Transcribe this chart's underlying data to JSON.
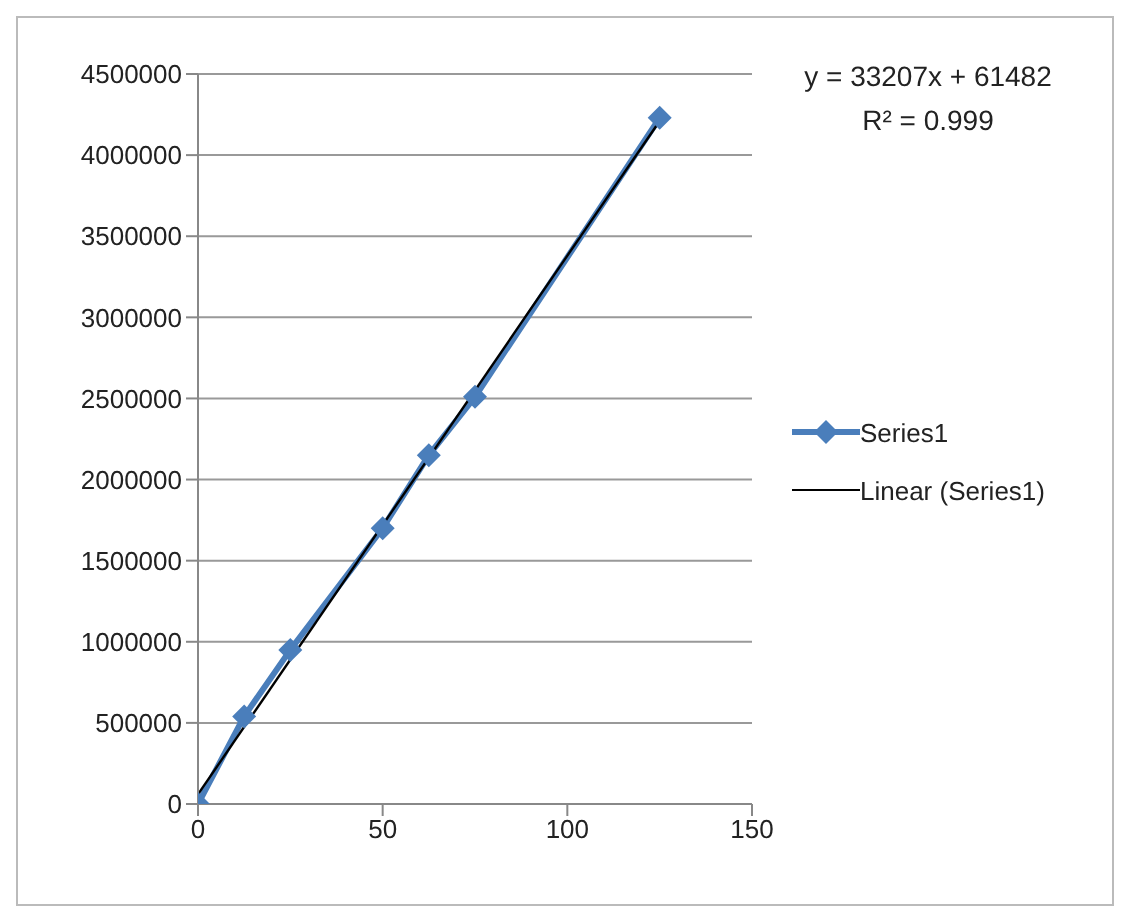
{
  "chart_data": {
    "type": "line",
    "annotations": [
      "y = 33207x + 61482",
      "R² = 0.999"
    ],
    "series": [
      {
        "name": "Series1",
        "color": "#4a7ebb",
        "x": [
          0,
          12.5,
          25,
          50,
          62.5,
          75,
          125
        ],
        "values": [
          0,
          540000,
          950000,
          1700000,
          2150000,
          2510000,
          4230000
        ],
        "marker": "diamond"
      },
      {
        "name": "Linear (Series1)",
        "color": "#000000",
        "type": "line",
        "x": [
          0,
          125
        ],
        "values": [
          60000,
          4210000
        ],
        "marker": "none"
      }
    ],
    "xlim": [
      0,
      150
    ],
    "xticks": [
      0,
      50,
      100,
      150
    ],
    "ylim": [
      0,
      4500000
    ],
    "yticks": [
      0,
      500000,
      1000000,
      1500000,
      2000000,
      2500000,
      3000000,
      3500000,
      4000000,
      4500000
    ],
    "grid": "y",
    "legend": "right",
    "line_style": "solid"
  }
}
